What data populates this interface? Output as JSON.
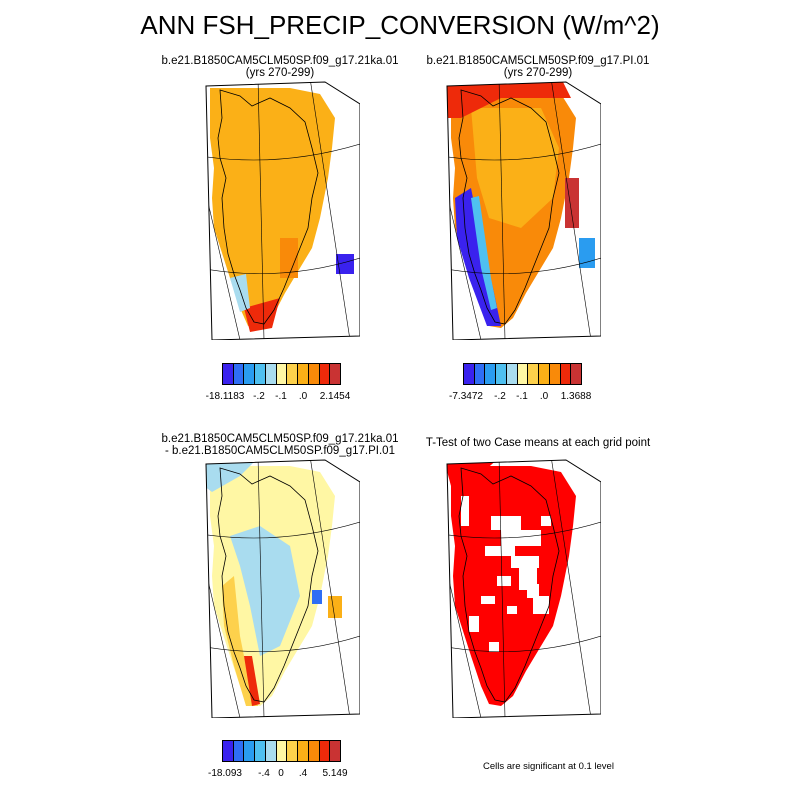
{
  "title": "ANN FSH_PRECIP_CONVERSION (W/m^2)",
  "panels": [
    {
      "title_line1": "b.e21.B1850CAM5CLM50SP.f09_g17.21ka.01",
      "title_line2": "(yrs 270-299)",
      "dominant_color": "#fbb017",
      "colorbar": {
        "colors": [
          "#3a22ee",
          "#2f6ef5",
          "#2a9cf0",
          "#4fc0f0",
          "#a9dcef",
          "#fff7a4",
          "#fdd14c",
          "#fbb017",
          "#f98a09",
          "#ee2a0a",
          "#c93333"
        ],
        "labels": [
          "-18.1183",
          "-.2",
          "-.1",
          ".0",
          "2.1454"
        ]
      }
    },
    {
      "title_line1": "b.e21.B1850CAM5CLM50SP.f09_g17.PI.01",
      "title_line2": "(yrs 270-299)",
      "dominant_color": "#fbb017",
      "colorbar": {
        "colors": [
          "#3a22ee",
          "#2f6ef5",
          "#2a9cf0",
          "#4fc0f0",
          "#a9dcef",
          "#fff7a4",
          "#fdd14c",
          "#fbb017",
          "#f98a09",
          "#ee2a0a",
          "#c93333"
        ],
        "labels": [
          "-7.3472",
          "-.2",
          "-.1",
          ".0",
          "1.3688"
        ]
      }
    },
    {
      "title_line1": "b.e21.B1850CAM5CLM50SP.f09_g17.21ka.01",
      "title_line2": "- b.e21.B1850CAM5CLM50SP.f09_g17.PI.01",
      "dominant_color": "#fff7a4",
      "colorbar": {
        "colors": [
          "#3a22ee",
          "#2f6ef5",
          "#2a9cf0",
          "#4fc0f0",
          "#a9dcef",
          "#fff7a4",
          "#fdd14c",
          "#fbb017",
          "#f98a09",
          "#ee2a0a",
          "#c93333"
        ],
        "labels": [
          "-18.093",
          "-.4",
          "0",
          ".4",
          "5.149"
        ]
      }
    },
    {
      "title_line1": "T-Test of two Case means at each grid point",
      "title_line2": "",
      "dominant_color": "#ff0000"
    }
  ],
  "significance_note": "Cells are significant at 0.1 level"
}
